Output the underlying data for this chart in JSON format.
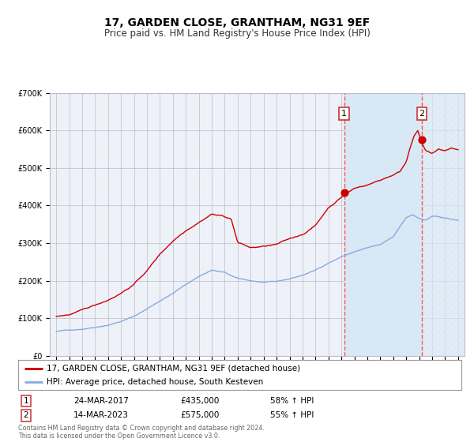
{
  "title": "17, GARDEN CLOSE, GRANTHAM, NG31 9EF",
  "subtitle": "Price paid vs. HM Land Registry's House Price Index (HPI)",
  "ylim": [
    0,
    700000
  ],
  "yticks": [
    0,
    100000,
    200000,
    300000,
    400000,
    500000,
    600000,
    700000
  ],
  "ytick_labels": [
    "£0",
    "£100K",
    "£200K",
    "£300K",
    "£400K",
    "£500K",
    "£600K",
    "£700K"
  ],
  "xlim_start": 1994.5,
  "xlim_end": 2026.5,
  "background_color": "#ffffff",
  "plot_bg_color": "#eef2f8",
  "grid_color": "#bbbbcc",
  "red_line_color": "#cc0000",
  "blue_line_color": "#88aadd",
  "shade_color": "#d8e8f5",
  "dashed_line_color": "#ff5555",
  "title_fontsize": 10,
  "subtitle_fontsize": 8.5,
  "tick_fontsize": 7,
  "legend_fontsize": 7.5,
  "sale1_x": 2017.22,
  "sale1_y": 435000,
  "sale1_label": "1",
  "sale1_date": "24-MAR-2017",
  "sale1_price": "£435,000",
  "sale1_hpi": "58% ↑ HPI",
  "sale2_x": 2023.21,
  "sale2_y": 575000,
  "sale2_label": "2",
  "sale2_date": "14-MAR-2023",
  "sale2_price": "£575,000",
  "sale2_hpi": "55% ↑ HPI",
  "footer": "Contains HM Land Registry data © Crown copyright and database right 2024.\nThis data is licensed under the Open Government Licence v3.0.",
  "legend1": "17, GARDEN CLOSE, GRANTHAM, NG31 9EF (detached house)",
  "legend2": "HPI: Average price, detached house, South Kesteven"
}
